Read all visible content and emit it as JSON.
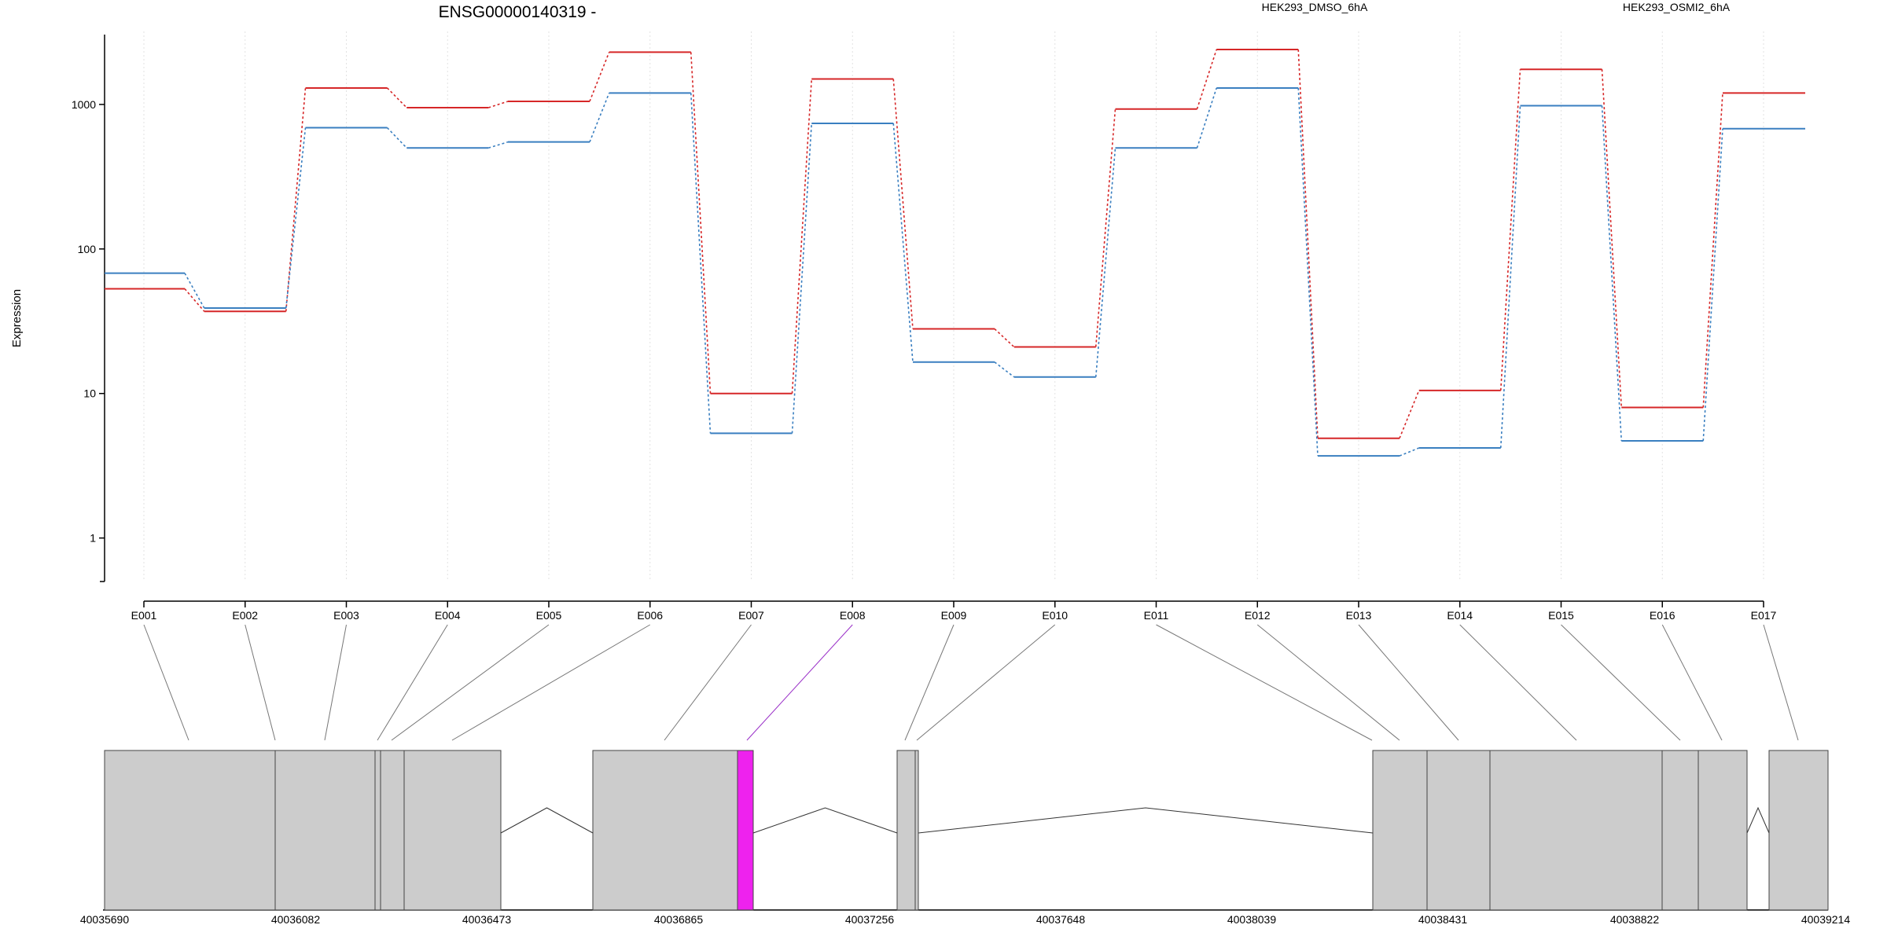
{
  "chart_data": {
    "type": "line",
    "title": "ENSG00000140319 -",
    "ylabel": "Expression",
    "xlabel": "",
    "yscale": "log",
    "ylim": [
      0.5,
      3200
    ],
    "yticks": [
      1,
      10,
      100,
      1000
    ],
    "ytick_labels": [
      "1",
      "10",
      "100",
      "1000"
    ],
    "grid": "vertical dotted lines at each exon position",
    "legend_placement": "top-right",
    "categories": [
      "E001",
      "E002",
      "E003",
      "E004",
      "E005",
      "E006",
      "E007",
      "E008",
      "E009",
      "E010",
      "E011",
      "E012",
      "E013",
      "E014",
      "E015",
      "E016",
      "E017"
    ],
    "series": [
      {
        "name": "HEK293_DMSO_6hA",
        "color": "#d62728",
        "values": [
          53,
          37,
          1300,
          950,
          1050,
          2300,
          10,
          1500,
          28,
          21,
          930,
          2400,
          4.9,
          10.5,
          1750,
          8,
          1200
        ]
      },
      {
        "name": "HEK293_OSMI2_6hA",
        "color": "#3a7fc0",
        "values": [
          68,
          39,
          690,
          500,
          550,
          1200,
          5.3,
          740,
          16.5,
          13,
          500,
          1300,
          3.7,
          4.2,
          980,
          4.7,
          680
        ]
      }
    ],
    "highlighted_exon": "E008",
    "highlight_color": "#ee22ee",
    "gene_model": {
      "coordinate_ticks": [
        "40035690",
        "40036082",
        "40036473",
        "40036865",
        "40037256",
        "40037648",
        "40038039",
        "40038431",
        "40038822",
        "40039214"
      ],
      "exon_fill": "#cccccc",
      "exon_stroke": "#444444"
    }
  }
}
